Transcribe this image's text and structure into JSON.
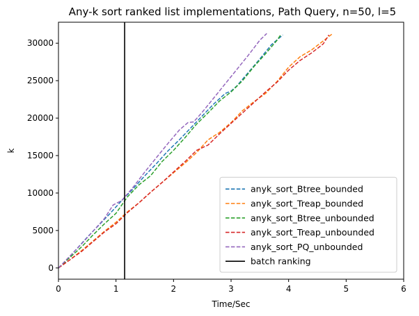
{
  "chart_data": {
    "type": "line",
    "title": "Any-k sort ranked list implementations, Path Query, n=50, l=5",
    "xlabel": "Time/Sec",
    "ylabel": "k",
    "xlim": [
      0,
      6
    ],
    "ylim": [
      -1500,
      32800
    ],
    "xticks": [
      "0",
      "1",
      "2",
      "3",
      "4",
      "5",
      "6"
    ],
    "xtick_values": [
      0,
      1,
      2,
      3,
      4,
      5,
      6
    ],
    "yticks": [
      "0",
      "5000",
      "10000",
      "15000",
      "20000",
      "25000",
      "30000"
    ],
    "ytick_values": [
      0,
      5000,
      10000,
      15000,
      20000,
      25000,
      30000
    ],
    "grid": false,
    "legend_position": "lower-right",
    "series": [
      {
        "name": "anyk_sort_Btree_bounded",
        "color": "#1f77b4",
        "style": "dashed",
        "x": [
          0.0,
          0.1,
          0.3,
          0.5,
          0.7,
          0.9,
          1.1,
          1.3,
          1.5,
          1.7,
          1.9,
          2.1,
          2.3,
          2.5,
          2.7,
          2.9,
          3.0,
          3.1,
          3.3,
          3.5,
          3.7,
          3.9
        ],
        "y": [
          0,
          700,
          2400,
          4100,
          5700,
          7300,
          9000,
          10600,
          12300,
          13900,
          15600,
          17100,
          18700,
          20300,
          21900,
          23300,
          23600,
          24300,
          26100,
          27900,
          29800,
          31100
        ]
      },
      {
        "name": "anyk_sort_Treap_bounded",
        "color": "#ff7f0e",
        "style": "dashed",
        "x": [
          0.0,
          0.2,
          0.4,
          0.6,
          0.8,
          1.0,
          1.2,
          1.4,
          1.6,
          1.8,
          2.0,
          2.2,
          2.4,
          2.6,
          2.8,
          3.0,
          3.2,
          3.4,
          3.6,
          3.8,
          4.0,
          4.2,
          4.4,
          4.6,
          4.75
        ],
        "y": [
          0,
          1100,
          2300,
          3600,
          4900,
          6100,
          7500,
          8700,
          10100,
          11400,
          12700,
          14000,
          15400,
          17100,
          18100,
          19400,
          21000,
          22200,
          23300,
          24900,
          26800,
          28200,
          29100,
          30300,
          31200
        ]
      },
      {
        "name": "anyk_sort_Btree_unbounded",
        "color": "#2ca02c",
        "style": "dashed",
        "x": [
          0.0,
          0.2,
          0.4,
          0.6,
          0.8,
          1.0,
          1.2,
          1.4,
          1.6,
          1.8,
          2.0,
          2.2,
          2.4,
          2.6,
          2.8,
          3.0,
          3.2,
          3.4,
          3.6,
          3.8,
          3.87
        ],
        "y": [
          0,
          1400,
          2800,
          4400,
          5900,
          7300,
          9500,
          11100,
          12300,
          14200,
          15700,
          17400,
          19200,
          20700,
          22300,
          23500,
          25000,
          26900,
          28600,
          30400,
          31200
        ]
      },
      {
        "name": "anyk_sort_Treap_unbounded",
        "color": "#d62728",
        "style": "dashed",
        "x": [
          0.0,
          0.2,
          0.4,
          0.6,
          0.8,
          1.0,
          1.2,
          1.4,
          1.6,
          1.8,
          2.0,
          2.2,
          2.4,
          2.6,
          2.8,
          3.0,
          3.2,
          3.4,
          3.6,
          3.8,
          4.0,
          4.2,
          4.4,
          4.6,
          4.7
        ],
        "y": [
          0,
          1100,
          2200,
          3500,
          4800,
          5900,
          7400,
          8700,
          10100,
          11400,
          12800,
          14200,
          15700,
          16400,
          17900,
          19300,
          20700,
          22100,
          23500,
          24800,
          26400,
          27700,
          28700,
          29900,
          31100
        ]
      },
      {
        "name": "anyk_sort_PQ_unbounded",
        "color": "#9467bd",
        "style": "dashed",
        "x": [
          0.0,
          0.2,
          0.4,
          0.6,
          0.8,
          0.95,
          1.1,
          1.3,
          1.5,
          1.7,
          1.9,
          2.1,
          2.25,
          2.35,
          2.5,
          2.7,
          2.9,
          3.1,
          3.3,
          3.5,
          3.62
        ],
        "y": [
          0,
          1600,
          3200,
          4900,
          6600,
          8400,
          9000,
          10800,
          12800,
          14700,
          16600,
          18400,
          19400,
          19500,
          20800,
          22700,
          24600,
          26500,
          28400,
          30400,
          31300
        ]
      },
      {
        "name": "batch ranking",
        "color": "#000000",
        "style": "solid",
        "vline_x": 1.15
      }
    ]
  }
}
